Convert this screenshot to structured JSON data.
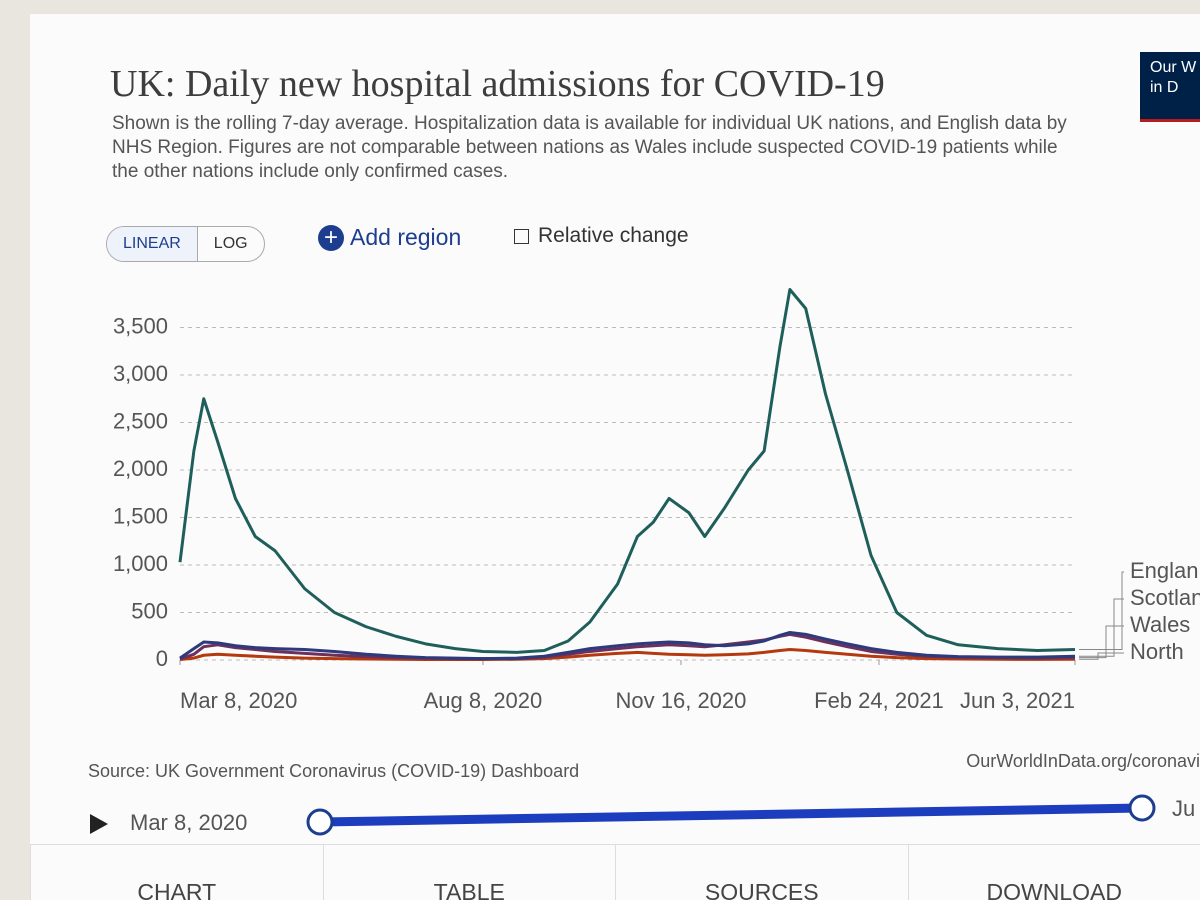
{
  "chart_data": {
    "type": "line",
    "title": "UK: Daily new hospital admissions for COVID-19",
    "subtitle": "Shown is the rolling 7-day average. Hospitalization data is available for individual UK nations, and English data by NHS Region. Figures are not comparable between nations as Wales include suspected COVID-19 patients while the other nations include only confirmed cases.",
    "source": "Source: UK Government Coronavirus (COVID-19) Dashboard",
    "url": "OurWorldInData.org/coronavi",
    "x": [
      "2020-03-08",
      "2020-03-15",
      "2020-03-20",
      "2020-03-27",
      "2020-04-05",
      "2020-04-15",
      "2020-04-25",
      "2020-05-10",
      "2020-05-25",
      "2020-06-10",
      "2020-06-25",
      "2020-07-10",
      "2020-07-25",
      "2020-08-08",
      "2020-08-25",
      "2020-09-08",
      "2020-09-20",
      "2020-10-01",
      "2020-10-15",
      "2020-10-25",
      "2020-11-02",
      "2020-11-10",
      "2020-11-20",
      "2020-11-28",
      "2020-12-08",
      "2020-12-20",
      "2020-12-28",
      "2021-01-05",
      "2021-01-10",
      "2021-01-18",
      "2021-01-28",
      "2021-02-08",
      "2021-02-20",
      "2021-03-05",
      "2021-03-20",
      "2021-04-05",
      "2021-04-25",
      "2021-05-15",
      "2021-06-03"
    ],
    "series": [
      {
        "name": "Englan",
        "color": "#1f5f5b",
        "values": [
          1030,
          2200,
          2750,
          2300,
          1700,
          1300,
          1150,
          750,
          500,
          350,
          250,
          170,
          120,
          90,
          80,
          100,
          200,
          400,
          800,
          1300,
          1450,
          1700,
          1550,
          1300,
          1600,
          2000,
          2200,
          3300,
          3900,
          3700,
          2800,
          2000,
          1100,
          500,
          260,
          160,
          120,
          100,
          110
        ]
      },
      {
        "name": "Scotlan",
        "color": "#2d3a7c",
        "values": [
          20,
          120,
          190,
          180,
          150,
          130,
          120,
          110,
          90,
          60,
          40,
          25,
          20,
          15,
          20,
          40,
          80,
          120,
          150,
          170,
          180,
          190,
          180,
          160,
          150,
          170,
          200,
          260,
          290,
          270,
          220,
          170,
          120,
          80,
          50,
          35,
          30,
          30,
          40
        ]
      },
      {
        "name": "Wales",
        "color": "#6d2f5c",
        "values": [
          10,
          60,
          140,
          160,
          130,
          110,
          90,
          70,
          50,
          35,
          25,
          20,
          15,
          15,
          15,
          30,
          60,
          90,
          120,
          140,
          150,
          160,
          150,
          140,
          160,
          190,
          210,
          250,
          270,
          240,
          190,
          140,
          90,
          60,
          40,
          30,
          25,
          20,
          25
        ]
      },
      {
        "name": "North",
        "color": "#b4390f",
        "values": [
          5,
          20,
          50,
          60,
          50,
          40,
          30,
          20,
          15,
          10,
          8,
          5,
          5,
          5,
          8,
          15,
          30,
          50,
          70,
          80,
          70,
          60,
          55,
          50,
          55,
          65,
          80,
          100,
          110,
          100,
          80,
          60,
          40,
          25,
          15,
          10,
          8,
          6,
          8
        ]
      }
    ],
    "xlim": [
      "2020-03-08",
      "2021-06-03"
    ],
    "xticks": [
      {
        "value": "2020-03-08",
        "label": "Mar 8, 2020"
      },
      {
        "value": "2020-08-08",
        "label": "Aug 8, 2020"
      },
      {
        "value": "2020-11-16",
        "label": "Nov 16, 2020"
      },
      {
        "value": "2021-02-24",
        "label": "Feb 24, 2021"
      },
      {
        "value": "2021-06-03",
        "label": "Jun 3, 2021"
      }
    ],
    "ylim": [
      0,
      4000
    ],
    "yticks": [
      0,
      500,
      {
        "value": 1000,
        "label": "1,000"
      },
      {
        "value": 1500,
        "label": "1,500"
      },
      {
        "value": 2000,
        "label": "2,000"
      },
      {
        "value": 2500,
        "label": "2,500"
      },
      {
        "value": 3000,
        "label": "3,000"
      },
      {
        "value": 3500,
        "label": "3,500"
      }
    ],
    "grid": true
  },
  "logo": [
    "Our W",
    "in D"
  ],
  "controls": {
    "linear": "LINEAR",
    "log": "LOG",
    "add_region": "Add region",
    "relative_change": "Relative change"
  },
  "timeline": {
    "start": "Mar 8, 2020",
    "end": "Ju"
  },
  "tabs": [
    "CHART",
    "TABLE",
    "SOURCES",
    "DOWNLOAD"
  ]
}
